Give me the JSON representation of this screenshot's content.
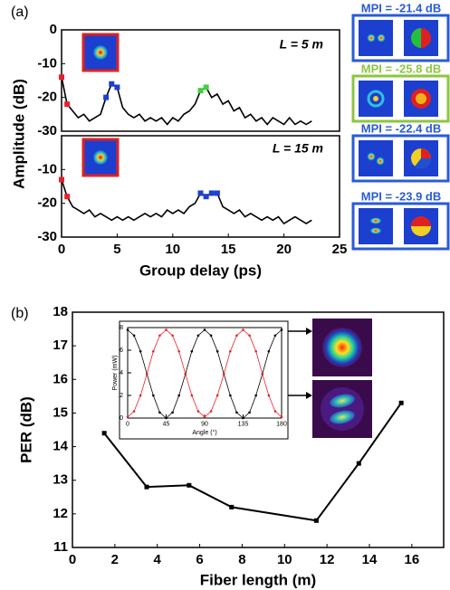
{
  "chart_data": [
    {
      "type": "line",
      "panel": "(a)",
      "ylabel": "Amplitude (dB)",
      "annotation": "L = 5 m",
      "mpi_labels": [
        {
          "text": "MPI = -21.4 dB",
          "color": "#2a5bd7"
        },
        {
          "text": "MPI = -25.8 dB",
          "color": "#8cc63f"
        }
      ],
      "xlim": [
        0,
        25
      ],
      "ylim": [
        -30,
        0
      ],
      "yticks": [
        0,
        -10,
        -20,
        -30
      ],
      "series": [
        {
          "color": "#000000",
          "marker": "none",
          "x": [
            0,
            0.5,
            1,
            1.5,
            2,
            2.5,
            3,
            3.5,
            4,
            4.5,
            5,
            5.5,
            6,
            6.5,
            7,
            7.5,
            8,
            8.5,
            9,
            9.5,
            10,
            10.5,
            11,
            11.5,
            12,
            12.5,
            13,
            13.5,
            14,
            14.5,
            15,
            15.5,
            16,
            16.5,
            17,
            17.5,
            18,
            18.5,
            19,
            19.5,
            20,
            20.5,
            21,
            21.5,
            22,
            22.5
          ],
          "values": [
            -14,
            -22,
            -24,
            -26,
            -25,
            -27,
            -26,
            -25,
            -20,
            -16,
            -17,
            -23,
            -25,
            -26,
            -25,
            -27,
            -26,
            -27,
            -26,
            -28,
            -26,
            -27,
            -25,
            -24,
            -22,
            -18,
            -17,
            -20,
            -19,
            -22,
            -21,
            -24,
            -23,
            -26,
            -25,
            -27,
            -26,
            -28,
            -26,
            -27,
            -28,
            -26,
            -28,
            -27,
            -28,
            -27
          ]
        },
        {
          "color": "#e8202a",
          "marker": "square",
          "x": [
            0,
            0.5
          ],
          "values": [
            -14,
            -22
          ]
        },
        {
          "color": "#1f3fd0",
          "marker": "square",
          "x": [
            4,
            4.5,
            5
          ],
          "values": [
            -20,
            -16,
            -17
          ]
        },
        {
          "color": "#3fd13f",
          "marker": "square",
          "x": [
            12.5,
            13
          ],
          "values": [
            -18,
            -17
          ]
        }
      ]
    },
    {
      "type": "line",
      "xlabel": "Group delay (ps)",
      "annotation": "L = 15 m",
      "mpi_labels": [
        {
          "text": "MPI = -22.4 dB",
          "color": "#2a5bd7"
        },
        {
          "text": "MPI = -23.9 dB",
          "color": "#2a5bd7"
        }
      ],
      "xlim": [
        0,
        25
      ],
      "xticks": [
        0,
        5,
        10,
        15,
        20,
        25
      ],
      "ylim": [
        -30,
        0
      ],
      "yticks": [
        -10,
        -20,
        -30
      ],
      "series": [
        {
          "color": "#000000",
          "marker": "none",
          "x": [
            0,
            0.5,
            1,
            1.5,
            2,
            2.5,
            3,
            3.5,
            4,
            4.5,
            5,
            5.5,
            6,
            6.5,
            7,
            7.5,
            8,
            8.5,
            9,
            9.5,
            10,
            10.5,
            11,
            11.5,
            12,
            12.5,
            13,
            13.5,
            14,
            14.5,
            15,
            15.5,
            16,
            16.5,
            17,
            17.5,
            18,
            18.5,
            19,
            19.5,
            20,
            20.5,
            21,
            21.5,
            22,
            22.5
          ],
          "values": [
            -13,
            -18,
            -21,
            -22,
            -23,
            -22,
            -24,
            -23,
            -24,
            -25,
            -24,
            -25,
            -24,
            -25,
            -24,
            -23,
            -24,
            -23,
            -24,
            -22,
            -23,
            -22,
            -23,
            -21,
            -20,
            -17,
            -18,
            -17,
            -17,
            -21,
            -22,
            -23,
            -22,
            -24,
            -23,
            -24,
            -25,
            -24,
            -25,
            -24,
            -26,
            -25,
            -24,
            -25,
            -26,
            -25
          ]
        },
        {
          "color": "#e8202a",
          "marker": "square",
          "x": [
            0,
            0.5
          ],
          "values": [
            -13,
            -18
          ]
        },
        {
          "color": "#1f3fd0",
          "marker": "square",
          "x": [
            12.5,
            13,
            13.5,
            14
          ],
          "values": [
            -17,
            -18,
            -17,
            -17
          ]
        }
      ]
    },
    {
      "type": "line",
      "panel": "(b)",
      "xlabel": "Fiber length (m)",
      "ylabel": "PER (dB)",
      "xlim": [
        0,
        17.5
      ],
      "xticks": [
        0,
        2,
        4,
        6,
        8,
        10,
        12,
        14,
        16
      ],
      "ylim": [
        11,
        18
      ],
      "yticks": [
        11,
        12,
        13,
        14,
        15,
        16,
        17,
        18
      ],
      "series": [
        {
          "color": "#000000",
          "marker": "square",
          "x": [
            1.5,
            3.5,
            5.5,
            7.5,
            11.5,
            13.5,
            15.5
          ],
          "values": [
            14.4,
            12.8,
            12.85,
            12.2,
            11.8,
            13.5,
            15.3
          ]
        }
      ]
    },
    {
      "type": "line",
      "xlabel": "Angle (°)",
      "ylabel": "Power (mW)",
      "xlim": [
        0,
        180
      ],
      "xticks": [
        0,
        45,
        90,
        135,
        180
      ],
      "ylim": [
        0,
        8
      ],
      "yticks": [
        0,
        2,
        4,
        6,
        8
      ],
      "series": [
        {
          "color": "#000000",
          "marker": "dot",
          "x": [
            0,
            7.5,
            15,
            22.5,
            30,
            37.5,
            45,
            52.5,
            60,
            67.5,
            75,
            82.5,
            90,
            97.5,
            105,
            112.5,
            120,
            127.5,
            135,
            142.5,
            150,
            157.5,
            165,
            172.5,
            180
          ],
          "values": [
            7.8,
            7.3,
            5.9,
            3.9,
            2.0,
            0.5,
            0.0,
            0.5,
            2.0,
            3.9,
            5.9,
            7.3,
            7.8,
            7.3,
            5.9,
            3.9,
            2.0,
            0.5,
            0.0,
            0.5,
            2.0,
            3.9,
            5.9,
            7.3,
            7.8
          ]
        },
        {
          "color": "#e8202a",
          "marker": "dot",
          "x": [
            0,
            7.5,
            15,
            22.5,
            30,
            37.5,
            45,
            52.5,
            60,
            67.5,
            75,
            82.5,
            90,
            97.5,
            105,
            112.5,
            120,
            127.5,
            135,
            142.5,
            150,
            157.5,
            165,
            172.5,
            180
          ],
          "values": [
            0.1,
            0.6,
            2.0,
            3.9,
            5.9,
            7.3,
            7.8,
            7.3,
            5.9,
            3.9,
            2.0,
            0.6,
            0.1,
            0.6,
            2.0,
            3.9,
            5.9,
            7.3,
            7.8,
            7.3,
            5.9,
            3.9,
            2.0,
            0.6,
            0.1
          ]
        }
      ]
    }
  ]
}
